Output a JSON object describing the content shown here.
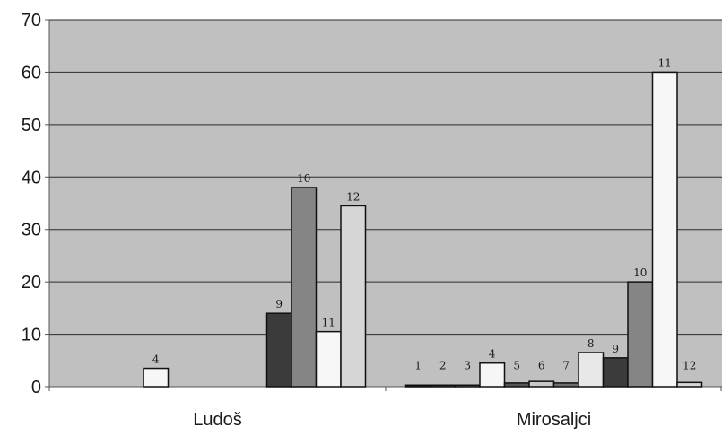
{
  "chart_data": {
    "type": "bar",
    "title": "",
    "xlabel": "",
    "ylabel": "",
    "ylim": [
      0,
      70
    ],
    "yticks": [
      0,
      10,
      20,
      30,
      40,
      50,
      60,
      70
    ],
    "grid": true,
    "legend": "none",
    "categories": [
      "Ludoš",
      "Mirosaljci"
    ],
    "series": [
      {
        "label": "1",
        "color": "#1a1a1a",
        "values": [
          0,
          0.3
        ]
      },
      {
        "label": "2",
        "color": "#4a4a4a",
        "values": [
          0,
          0.3
        ]
      },
      {
        "label": "3",
        "color": "#7a7a7a",
        "values": [
          0,
          0.3
        ]
      },
      {
        "label": "4",
        "color": "#f6f6f6",
        "values": [
          3.5,
          4.5
        ]
      },
      {
        "label": "5",
        "color": "#555555",
        "values": [
          0,
          0.7
        ]
      },
      {
        "label": "6",
        "color": "#c8c8c8",
        "values": [
          0,
          1.0
        ]
      },
      {
        "label": "7",
        "color": "#6e6e6e",
        "values": [
          0,
          0.7
        ]
      },
      {
        "label": "8",
        "color": "#e8e8e8",
        "values": [
          0,
          6.5
        ]
      },
      {
        "label": "9",
        "color": "#3b3b3b",
        "values": [
          14,
          5.5
        ]
      },
      {
        "label": "10",
        "color": "#858585",
        "values": [
          38,
          20
        ]
      },
      {
        "label": "11",
        "color": "#f7f7f7",
        "values": [
          10.5,
          60
        ]
      },
      {
        "label": "12",
        "color": "#d6d6d6",
        "values": [
          34.5,
          0.8
        ]
      }
    ]
  }
}
